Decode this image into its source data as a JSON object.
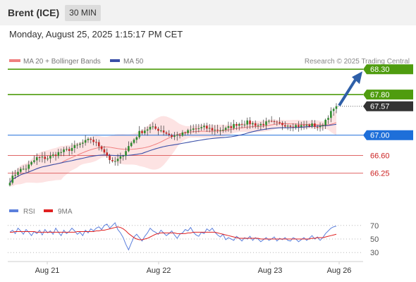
{
  "header": {
    "instrument": "Brent (ICE)",
    "timeframe": "30 MIN",
    "datetime": "Monday, August 25, 2025 1:15:17 PM CET"
  },
  "legend": {
    "ma20_label": "MA 20 + Bollinger Bands",
    "ma50_label": "MA 50",
    "credit": "Research © 2025 Trading Central",
    "rsi_label": "RSI",
    "ma9_label": "9MA"
  },
  "colors": {
    "up_candle": "#2e8b2e",
    "down_candle": "#c62828",
    "ma20": "#f08080",
    "bollinger_fill": "#fde3e3",
    "ma50": "#3a4fa8",
    "resistance": "#4f9c0f",
    "pivot": "#1e6fd9",
    "support": "#e06666",
    "arrow": "#2e5fa8",
    "price_label": "#333333",
    "rsi": "#5b7fdc",
    "rsi_ma": "#e02020"
  },
  "chart_data": [
    {
      "type": "candlestick",
      "title": "Brent (ICE) 30 MIN",
      "x_labels": [
        "Aug 21",
        "Aug 22",
        "Aug 23",
        "Aug 26"
      ],
      "y_range": [
        65.8,
        68.4
      ],
      "levels": [
        {
          "value": 68.3,
          "label": "68.30",
          "kind": "resistance"
        },
        {
          "value": 67.8,
          "label": "67.80",
          "kind": "resistance"
        },
        {
          "value": 67.57,
          "label": "67.57",
          "kind": "last_price"
        },
        {
          "value": 67.0,
          "label": "67.00",
          "kind": "pivot"
        },
        {
          "value": 66.6,
          "label": "66.60",
          "kind": "support"
        },
        {
          "value": 66.25,
          "label": "66.25",
          "kind": "support"
        }
      ],
      "close_path": [
        {
          "i": 0,
          "close": 66.1
        },
        {
          "i": 3,
          "close": 66.3
        },
        {
          "i": 6,
          "close": 66.35
        },
        {
          "i": 10,
          "close": 66.55
        },
        {
          "i": 14,
          "close": 66.55
        },
        {
          "i": 18,
          "close": 66.65
        },
        {
          "i": 22,
          "close": 66.72
        },
        {
          "i": 26,
          "close": 66.82
        },
        {
          "i": 30,
          "close": 66.92
        },
        {
          "i": 34,
          "close": 66.75
        },
        {
          "i": 38,
          "close": 66.45
        },
        {
          "i": 41,
          "close": 66.55
        },
        {
          "i": 44,
          "close": 66.78
        },
        {
          "i": 48,
          "close": 67.05
        },
        {
          "i": 52,
          "close": 67.15
        },
        {
          "i": 56,
          "close": 67.1
        },
        {
          "i": 60,
          "close": 66.98
        },
        {
          "i": 64,
          "close": 67.02
        },
        {
          "i": 68,
          "close": 67.12
        },
        {
          "i": 72,
          "close": 67.15
        },
        {
          "i": 76,
          "close": 67.1
        },
        {
          "i": 80,
          "close": 67.12
        },
        {
          "i": 84,
          "close": 67.22
        },
        {
          "i": 88,
          "close": 67.25
        },
        {
          "i": 92,
          "close": 67.2
        },
        {
          "i": 96,
          "close": 67.25
        },
        {
          "i": 100,
          "close": 67.22
        },
        {
          "i": 104,
          "close": 67.2
        },
        {
          "i": 108,
          "close": 67.18
        },
        {
          "i": 112,
          "close": 67.2
        },
        {
          "i": 115,
          "close": 67.15
        },
        {
          "i": 118,
          "close": 67.38
        },
        {
          "i": 121,
          "close": 67.57
        }
      ],
      "forecast_arrow": {
        "from": 67.57,
        "to": 68.3
      }
    },
    {
      "type": "line",
      "title": "RSI",
      "y_ticks": [
        70,
        50,
        30
      ],
      "series": [
        {
          "name": "RSI",
          "values": [
            60,
            63,
            58,
            66,
            62,
            57,
            64,
            60,
            55,
            61,
            58,
            63,
            56,
            64,
            59,
            62,
            57,
            66,
            60,
            55,
            63,
            58,
            61,
            66,
            62,
            57,
            60,
            55,
            63,
            59,
            65,
            62,
            66,
            68,
            64,
            70,
            72,
            66,
            70,
            74,
            64,
            59,
            52,
            42,
            34,
            44,
            53,
            57,
            52,
            47,
            54,
            59,
            66,
            62,
            60,
            57,
            63,
            59,
            55,
            58,
            62,
            56,
            51,
            57,
            59,
            64,
            62,
            67,
            60,
            56,
            54,
            60,
            58,
            65,
            62,
            66,
            60,
            56,
            53,
            57,
            49,
            52,
            50,
            48,
            54,
            51,
            47,
            52,
            50,
            54,
            48,
            52,
            50,
            46,
            49,
            52,
            48,
            50,
            53,
            47,
            51,
            49,
            52,
            48,
            47,
            52,
            50,
            46,
            49,
            52,
            48,
            51,
            55,
            50,
            53,
            48,
            52,
            58,
            62,
            66,
            68,
            69
          ]
        },
        {
          "name": "9MA",
          "values": [
            60,
            60,
            61,
            61,
            61,
            61,
            61,
            61,
            61,
            61,
            60,
            60,
            60,
            60,
            60,
            60,
            60,
            60,
            60,
            60,
            60,
            60,
            60,
            60,
            60,
            61,
            61,
            61,
            61,
            61,
            61,
            61,
            62,
            62,
            63,
            63,
            64,
            65,
            66,
            67,
            68,
            67,
            65,
            62,
            58,
            55,
            52,
            50,
            49,
            49,
            50,
            51,
            53,
            55,
            57,
            58,
            59,
            59,
            59,
            59,
            59,
            59,
            58,
            58,
            58,
            58,
            59,
            59,
            60,
            60,
            60,
            60,
            60,
            60,
            60,
            60,
            60,
            59,
            58,
            57,
            56,
            55,
            54,
            53,
            52,
            51,
            51,
            51,
            51,
            51,
            51,
            51,
            51,
            50,
            50,
            50,
            50,
            50,
            50,
            50,
            50,
            50,
            50,
            50,
            50,
            50,
            50,
            50,
            50,
            50,
            50,
            50,
            51,
            51,
            52,
            52,
            52,
            53,
            54,
            55,
            56,
            57
          ]
        }
      ]
    }
  ]
}
